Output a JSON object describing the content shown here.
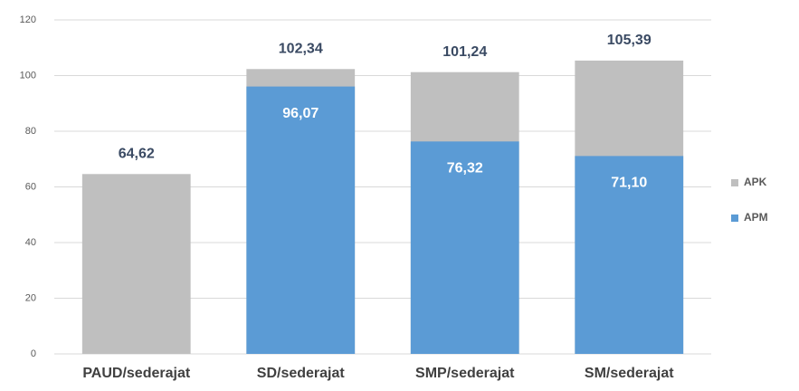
{
  "chart_data": {
    "type": "bar",
    "barmode": "overlay",
    "categories": [
      "PAUD/sederajat",
      "SD/sederajat",
      "SMP/sederajat",
      "SM/sederajat"
    ],
    "series": [
      {
        "name": "APK",
        "color": "#bfbfbf",
        "values": [
          64.62,
          102.34,
          101.24,
          105.39
        ],
        "value_labels": [
          "64,62",
          "102,34",
          "101,24",
          "105,39"
        ]
      },
      {
        "name": "APM",
        "color": "#5b9bd5",
        "values": [
          null,
          96.07,
          76.32,
          71.1
        ],
        "value_labels": [
          null,
          "96,07",
          "76,32",
          "71,10"
        ]
      }
    ],
    "ylim": [
      0,
      120
    ],
    "yticks": [
      0,
      20,
      40,
      60,
      80,
      100,
      120
    ],
    "grid": true,
    "legend": "right"
  }
}
